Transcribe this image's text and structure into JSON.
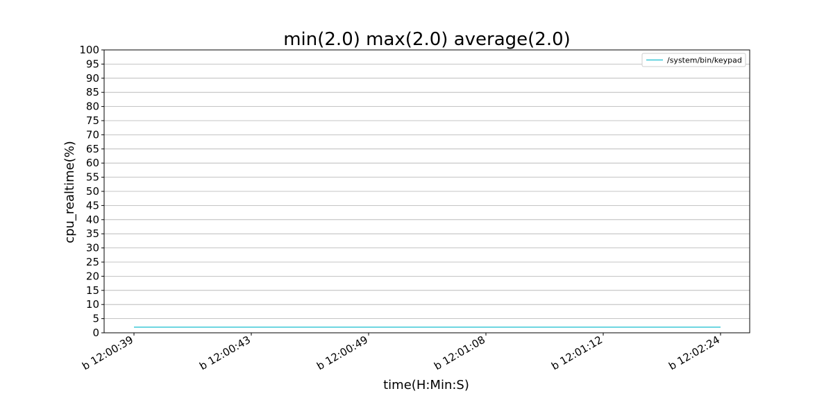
{
  "chart_data": {
    "type": "line",
    "title": "min(2.0) max(2.0) average(2.0)",
    "xlabel": "time(H:Min:S)",
    "ylabel": "cpu_realtime(%)",
    "categories": [
      "b 12:00:39",
      "b 12:00:43",
      "b 12:00:49",
      "b 12:01:08",
      "b 12:01:12",
      "b 12:02:24"
    ],
    "series": [
      {
        "name": "/system/bin/keypad",
        "values": [
          2.0,
          2.0,
          2.0,
          2.0,
          2.0,
          2.0
        ],
        "color": "#17becf"
      }
    ],
    "ylim": [
      0,
      100
    ],
    "ytick_step": 5,
    "grid": "horizontal",
    "legend_position": "top-right"
  }
}
